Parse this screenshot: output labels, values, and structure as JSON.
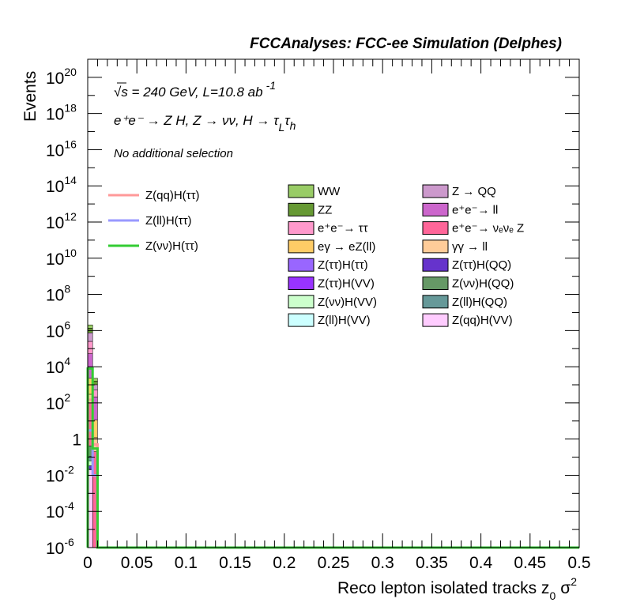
{
  "header": {
    "title": "FCCAnalyses: FCC-ee Simulation (Delphes)"
  },
  "annotations": {
    "energy_lumi": "√s = 240 GeV, L=10.8 ab",
    "energy_lumi_sup": "-1",
    "process": "e⁺e⁻ → Z H, Z → νν, H → τ",
    "process_sub1": "L",
    "process_tail": "τ",
    "process_sub2": "h",
    "selection": "No additional selection"
  },
  "chart_data": {
    "type": "bar",
    "title": "FCCAnalyses: FCC-ee Simulation (Delphes)",
    "xlabel": "Reco lepton isolated tracks z",
    "xlabel_sub": "0",
    "xlabel_tail": "σ",
    "xlabel_sup": "2",
    "ylabel": "Events",
    "xlim": [
      0,
      0.5
    ],
    "ylim": [
      1e-06,
      1e+21
    ],
    "y_scale": "log",
    "x_ticks": [
      "0",
      "0.05",
      "0.1",
      "0.15",
      "0.2",
      "0.25",
      "0.3",
      "0.35",
      "0.4",
      "0.45",
      "0.5"
    ],
    "y_ticks": [
      {
        "base": "10",
        "exp": "20"
      },
      {
        "base": "10",
        "exp": "18"
      },
      {
        "base": "10",
        "exp": "16"
      },
      {
        "base": "10",
        "exp": "14"
      },
      {
        "base": "10",
        "exp": "12"
      },
      {
        "base": "10",
        "exp": "10"
      },
      {
        "base": "10",
        "exp": "8"
      },
      {
        "base": "10",
        "exp": "6"
      },
      {
        "base": "10",
        "exp": "4"
      },
      {
        "base": "10",
        "exp": "2"
      },
      {
        "base": "1",
        "exp": ""
      },
      {
        "base": "10",
        "exp": "-2"
      },
      {
        "base": "10",
        "exp": "-4"
      },
      {
        "base": "10",
        "exp": "-6"
      }
    ],
    "bin_edges": [
      0,
      0.005,
      0.01
    ],
    "stack": [
      {
        "name": "Z(qq)H(VV)",
        "color": "#ffccff",
        "values": [
          0.02,
          0.0
        ]
      },
      {
        "name": "Z(ll)H(VV)",
        "color": "#ccffff",
        "values": [
          0.0001,
          0.0
        ]
      },
      {
        "name": "Z(ττ)H(VV)",
        "color": "#9933ff",
        "values": [
          0.0003,
          0.0
        ]
      },
      {
        "name": "Z(ττ)H(ττ)",
        "color": "#9966ff",
        "values": [
          0.003,
          0.0
        ]
      },
      {
        "name": "Z(ττ)H(QQ)",
        "color": "#6633cc",
        "values": [
          0.01,
          0.0
        ]
      },
      {
        "name": "Z(νν)H(VV)",
        "color": "#ccffcc",
        "values": [
          0.03,
          0.0
        ]
      },
      {
        "name": "Z(ll)H(QQ)",
        "color": "#669999",
        "values": [
          0.05,
          0.0
        ]
      },
      {
        "name": "Z(νν)H(QQ)",
        "color": "#669966",
        "values": [
          0.3,
          0.0
        ]
      },
      {
        "name": "e⁺e⁻→ νₑνₑ Z",
        "color": "#ff6699",
        "values": [
          100,
          0.2
        ]
      },
      {
        "name": "γγ → ll",
        "color": "#ffcc99",
        "values": [
          200,
          1
        ]
      },
      {
        "name": "eγ → eZ(ll)",
        "color": "#ffcc66",
        "values": [
          2000,
          10
        ]
      },
      {
        "name": "e⁺e⁻→ ll",
        "color": "#cc66cc",
        "values": [
          50000,
          200
        ]
      },
      {
        "name": "e⁺e⁻→ ττ",
        "color": "#ff99cc",
        "values": [
          200000,
          300
        ]
      },
      {
        "name": "Z → QQ",
        "color": "#cc99cc",
        "values": [
          500000,
          500
        ]
      },
      {
        "name": "ZZ",
        "color": "#669933",
        "values": [
          600000,
          600
        ]
      },
      {
        "name": "WW",
        "color": "#99cc66",
        "values": [
          700000,
          700
        ]
      }
    ],
    "signals": [
      {
        "name": "Z(qq)H(ττ)",
        "color": "#ff9999",
        "values": [
          150,
          0.5
        ]
      },
      {
        "name": "Z(ll)H(ττ)",
        "color": "#9999ff",
        "values": [
          3,
          0.01
        ]
      },
      {
        "name": "Z(νν)H(ττ)",
        "color": "#33cc33",
        "values": [
          8000,
          0.3
        ]
      }
    ]
  },
  "legend": {
    "signals": [
      {
        "label": "Z(qq)H(ττ)",
        "color": "#ff9999"
      },
      {
        "label": "Z(ll)H(ττ)",
        "color": "#9999ff"
      },
      {
        "label": "Z(νν)H(ττ)",
        "color": "#33cc33"
      }
    ],
    "backgrounds": [
      {
        "label": "WW",
        "color": "#99cc66"
      },
      {
        "label": "Z → QQ",
        "color": "#cc99cc"
      },
      {
        "label": "ZZ",
        "color": "#669933"
      },
      {
        "label": "e⁺e⁻→ ll",
        "color": "#cc66cc"
      },
      {
        "label": "e⁺e⁻→ ττ",
        "color": "#ff99cc"
      },
      {
        "label": "e⁺e⁻→ νₑνₑ Z",
        "color": "#ff6699"
      },
      {
        "label": "eγ → eZ(ll)",
        "color": "#ffcc66"
      },
      {
        "label": "γγ → ll",
        "color": "#ffcc99"
      },
      {
        "label": "Z(ττ)H(ττ)",
        "color": "#9966ff"
      },
      {
        "label": "Z(ττ)H(QQ)",
        "color": "#6633cc"
      },
      {
        "label": "Z(ττ)H(VV)",
        "color": "#9933ff"
      },
      {
        "label": "Z(νν)H(QQ)",
        "color": "#669966"
      },
      {
        "label": "Z(νν)H(VV)",
        "color": "#ccffcc"
      },
      {
        "label": "Z(ll)H(QQ)",
        "color": "#669999"
      },
      {
        "label": "Z(ll)H(VV)",
        "color": "#ccffff"
      },
      {
        "label": "Z(qq)H(VV)",
        "color": "#ffccff"
      }
    ]
  }
}
